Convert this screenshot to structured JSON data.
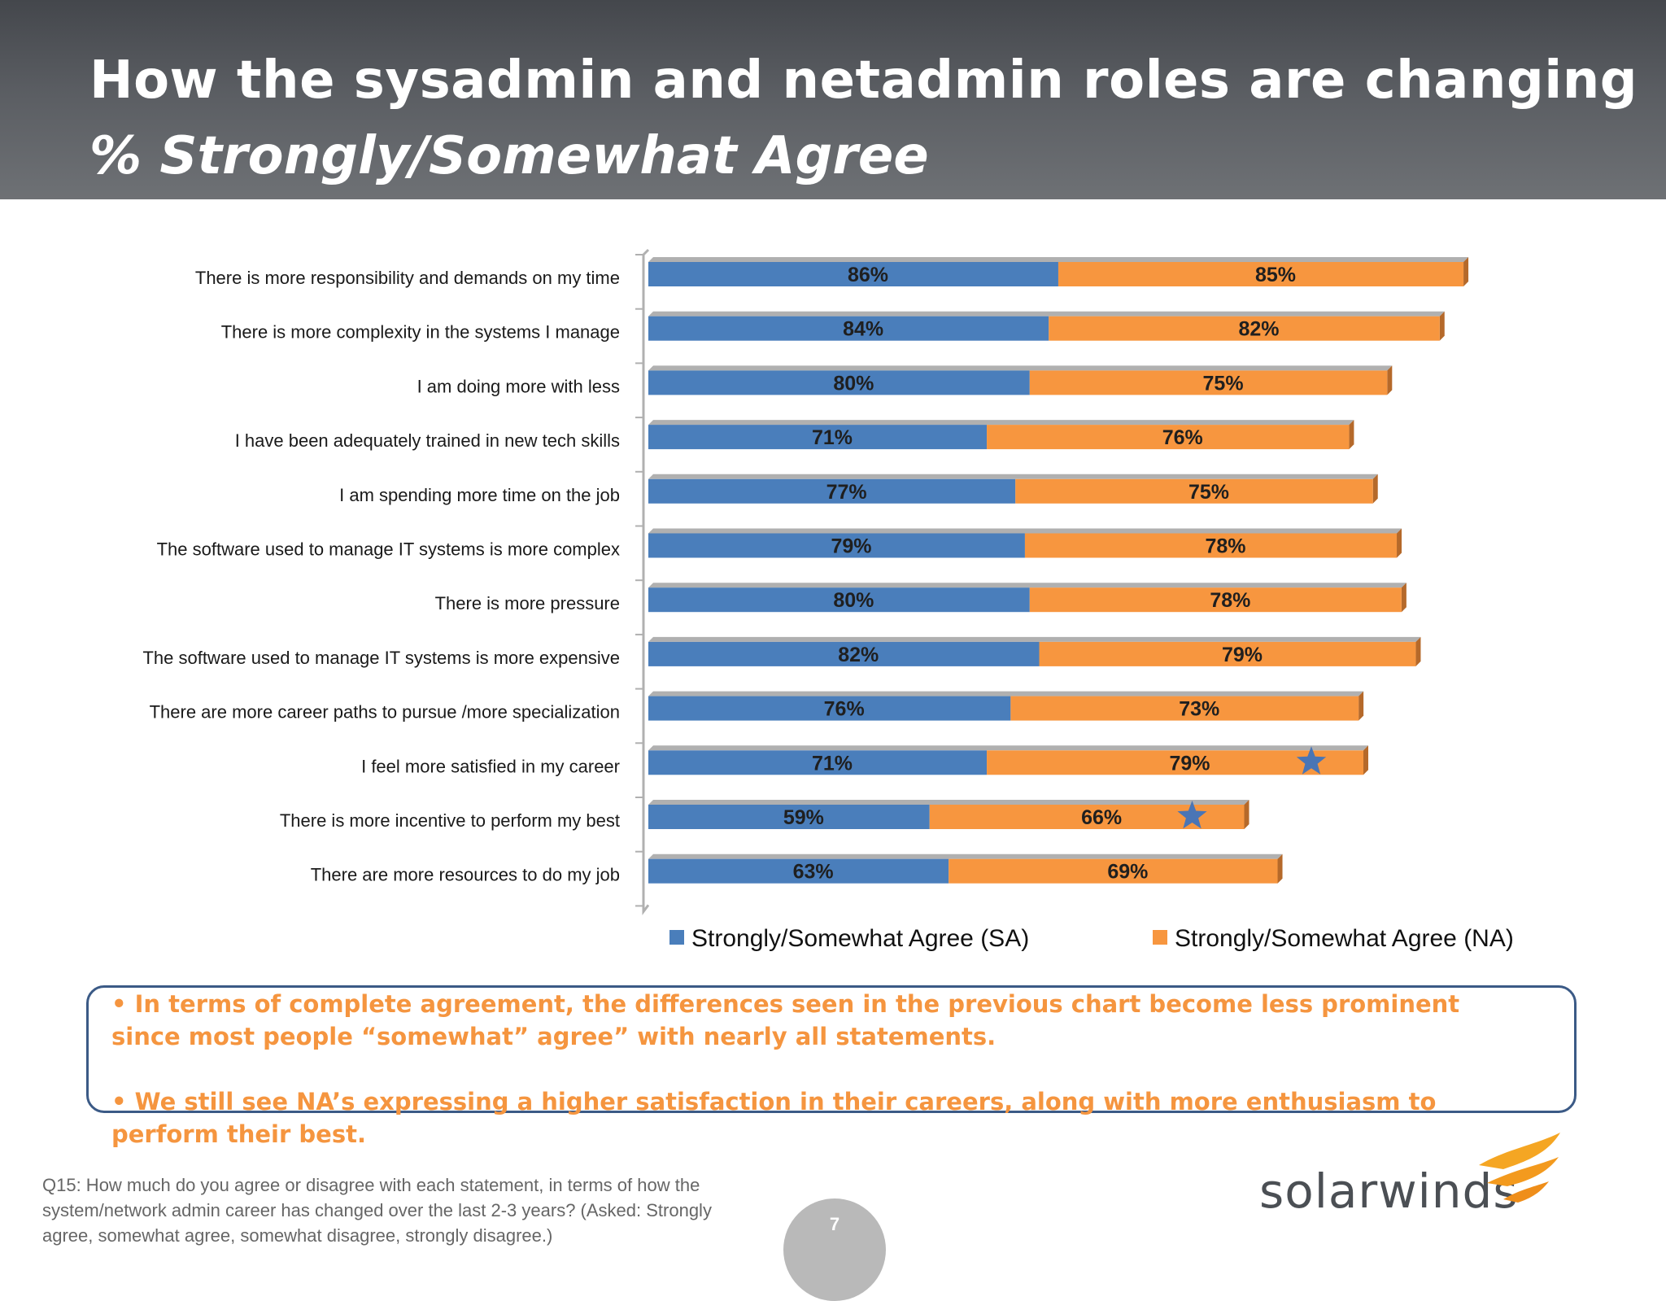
{
  "header": {
    "title": "How the sysadmin and netadmin roles are changing",
    "subtitle": "% Strongly/Somewhat Agree"
  },
  "colors": {
    "sa": "#4a7ebb",
    "na": "#f7963f",
    "star": "#4a75b5"
  },
  "chart_data": {
    "type": "bar",
    "orientation": "horizontal",
    "stacked": true,
    "categories": [
      "There is more responsibility and demands on my time",
      "There is more complexity in the systems I manage",
      "I am doing more with less",
      "I have been adequately trained in new tech skills",
      "I am spending more time on the job",
      "The software used to manage IT systems is more complex",
      "There is more pressure",
      "The software used to manage IT systems is more expensive",
      "There are more career paths to pursue /more specialization",
      "I feel more satisfied in my career",
      "There is more incentive to perform my best",
      "There are more resources to do my job"
    ],
    "series": [
      {
        "name": "Strongly/Somewhat Agree (SA)",
        "values": [
          86,
          84,
          80,
          71,
          77,
          79,
          80,
          82,
          76,
          71,
          59,
          63
        ]
      },
      {
        "name": "Strongly/Somewhat Agree (NA)",
        "values": [
          85,
          82,
          75,
          76,
          75,
          78,
          78,
          79,
          73,
          79,
          66,
          69
        ]
      }
    ],
    "value_format": "%",
    "highlighted_categories": [
      "I feel more satisfied in my career",
      "There is more incentive to perform my best"
    ],
    "legend_position": "bottom",
    "grid": false,
    "xlim": [
      0,
      200
    ]
  },
  "callout": {
    "point1": "• In terms of complete agreement, the differences seen in the previous chart become less prominent since most people “somewhat” agree” with nearly all statements.",
    "point2": "• We still see NA’s expressing a higher satisfaction in their careers, along with more enthusiasm to perform their best."
  },
  "footnote": "Q15: How much do you agree or disagree with each statement, in terms of how the system/network admin career has changed over the last 2-3 years?  (Asked: Strongly agree, somewhat agree, somewhat disagree, strongly disagree.)",
  "page_number": "7",
  "logo": {
    "text": "solarwinds"
  }
}
